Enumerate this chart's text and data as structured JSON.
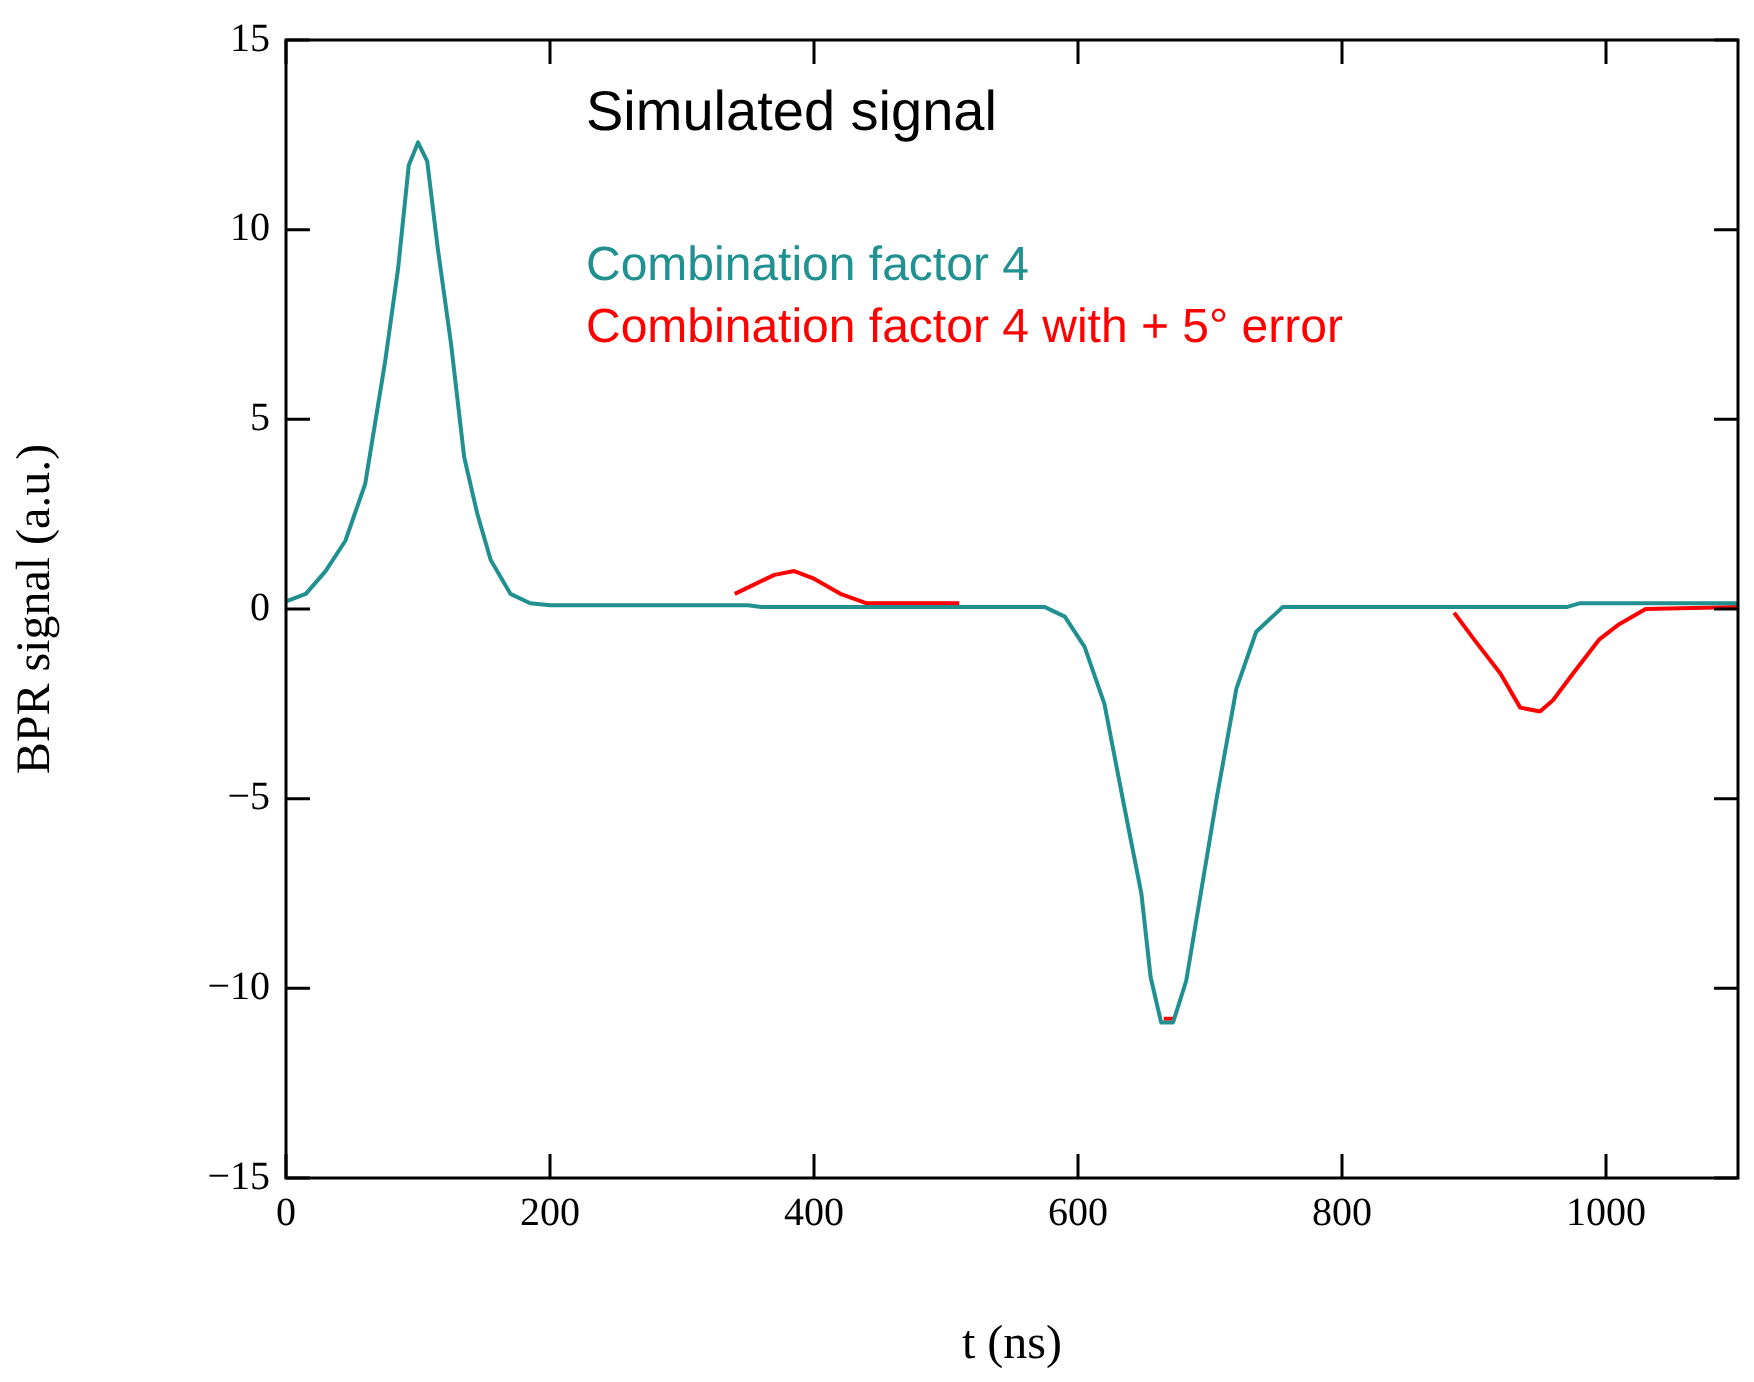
{
  "chart_data": {
    "type": "line",
    "title": "Simulated signal",
    "xlabel": "t (ns)",
    "ylabel": "BPR signal (a.u.)",
    "xlim": [
      0,
      1100
    ],
    "xticks": [
      0,
      200,
      400,
      600,
      800,
      1000
    ],
    "ylim": [
      -15,
      15
    ],
    "yticks": [
      -15,
      -10,
      -5,
      0,
      5,
      10,
      15
    ],
    "grid": false,
    "legend": "top",
    "marker": "none",
    "line_style": "solid",
    "series": [
      {
        "name": "Combination factor 4",
        "color": "#209090",
        "x": [
          0,
          15,
          30,
          45,
          60,
          75,
          85,
          93,
          100,
          107,
          115,
          125,
          135,
          145,
          155,
          170,
          185,
          200,
          350,
          360,
          575,
          590,
          605,
          620,
          635,
          648,
          655,
          663,
          672,
          682,
          693,
          705,
          720,
          735,
          755,
          970,
          980,
          1100
        ],
        "values": [
          0.2,
          0.4,
          1.0,
          1.8,
          3.3,
          6.5,
          9.0,
          11.7,
          12.3,
          11.8,
          9.5,
          7.0,
          4.0,
          2.5,
          1.3,
          0.4,
          0.15,
          0.1,
          0.1,
          0.05,
          0.05,
          -0.2,
          -1.0,
          -2.5,
          -5.2,
          -7.5,
          -9.7,
          -10.9,
          -10.9,
          -9.8,
          -7.5,
          -5.0,
          -2.1,
          -0.6,
          0.05,
          0.05,
          0.15,
          0.15
        ]
      },
      {
        "name": "Combination factor 4 with + 5° error",
        "color": "#ff0000",
        "x": [
          340,
          370,
          385,
          400,
          420,
          440,
          510,
          600,
          665,
          672,
          800,
          885,
          900,
          920,
          935,
          950,
          960,
          975,
          995,
          1010,
          1030,
          1100
        ],
        "values": [
          0.4,
          0.9,
          1.0,
          0.8,
          0.4,
          0.15,
          0.15,
          null,
          -10.8,
          -10.8,
          null,
          -0.1,
          -0.8,
          -1.7,
          -2.6,
          -2.7,
          -2.4,
          -1.7,
          -0.8,
          -0.4,
          0.0,
          0.05
        ]
      }
    ]
  }
}
